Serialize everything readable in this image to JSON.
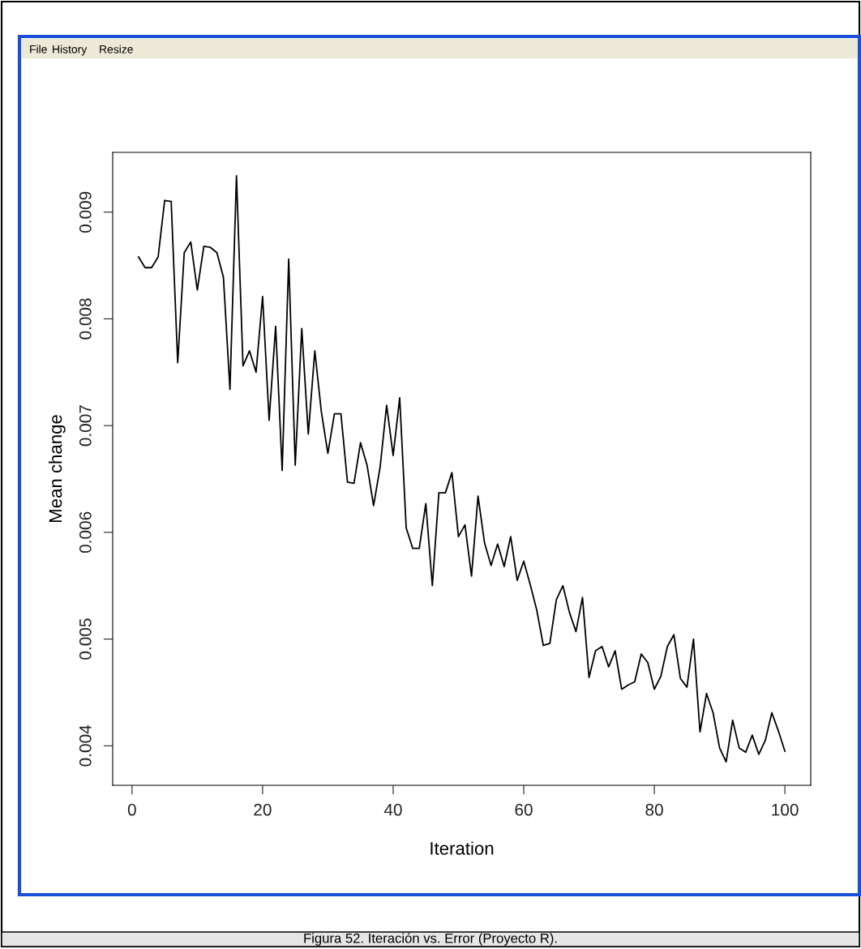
{
  "chart_data": {
    "type": "line",
    "xlabel": "Iteration",
    "ylabel": "Mean change",
    "annotations": [
      "File",
      "History",
      "Resize",
      "Figura 52. Iteración vs. Error (Proyecto R)."
    ],
    "x": [
      1,
      2,
      3,
      4,
      5,
      6,
      7,
      8,
      9,
      10,
      11,
      12,
      13,
      14,
      15,
      16,
      17,
      18,
      19,
      20,
      21,
      22,
      23,
      24,
      25,
      26,
      27,
      28,
      29,
      30,
      31,
      32,
      33,
      34,
      35,
      36,
      37,
      38,
      39,
      40,
      41,
      42,
      43,
      44,
      45,
      46,
      47,
      48,
      49,
      50,
      51,
      52,
      53,
      54,
      55,
      56,
      57,
      58,
      59,
      60,
      61,
      62,
      63,
      64,
      65,
      66,
      67,
      68,
      69,
      70,
      71,
      72,
      73,
      74,
      75,
      76,
      77,
      78,
      79,
      80,
      81,
      82,
      83,
      84,
      85,
      86,
      87,
      88,
      89,
      90,
      91,
      92,
      93,
      94,
      95,
      96,
      97,
      98,
      99,
      100
    ],
    "series": [
      {
        "color": "#000000",
        "values": [
          0.00858,
          0.00848,
          0.00848,
          0.00858,
          0.00911,
          0.0091,
          0.00759,
          0.00862,
          0.00872,
          0.00827,
          0.00868,
          0.00867,
          0.00862,
          0.00839,
          0.00734,
          0.00934,
          0.00756,
          0.0077,
          0.0075,
          0.00821,
          0.00705,
          0.00793,
          0.00658,
          0.00856,
          0.00663,
          0.00791,
          0.00692,
          0.0077,
          0.00713,
          0.00674,
          0.00711,
          0.00711,
          0.00647,
          0.00646,
          0.00684,
          0.00663,
          0.00625,
          0.00661,
          0.00719,
          0.00672,
          0.00726,
          0.00604,
          0.00585,
          0.00585,
          0.00627,
          0.0055,
          0.00637,
          0.00637,
          0.00656,
          0.00596,
          0.00607,
          0.00559,
          0.00634,
          0.0059,
          0.00569,
          0.00589,
          0.00568,
          0.00596,
          0.00555,
          0.00573,
          0.00551,
          0.00527,
          0.00494,
          0.00496,
          0.00537,
          0.0055,
          0.00525,
          0.00507,
          0.00539,
          0.00464,
          0.00489,
          0.00493,
          0.00474,
          0.00489,
          0.00453,
          0.00457,
          0.0046,
          0.00486,
          0.00478,
          0.00453,
          0.00465,
          0.00493,
          0.00504,
          0.00463,
          0.00455,
          0.005,
          0.00413,
          0.00449,
          0.00431,
          0.00398,
          0.00385,
          0.00424,
          0.00398,
          0.00394,
          0.0041,
          0.00392,
          0.00405,
          0.00431,
          0.00414,
          0.00395
        ]
      }
    ],
    "xlim": [
      -2.96,
      103.96
    ],
    "ylim": [
      0.00363,
      0.00956
    ],
    "xticks": [
      0,
      20,
      40,
      60,
      80,
      100
    ],
    "yticks": [
      0.004,
      0.005,
      0.006,
      0.007,
      0.008,
      0.009
    ],
    "grid": false,
    "legend": false,
    "marker": "none",
    "line_style": "solid"
  }
}
